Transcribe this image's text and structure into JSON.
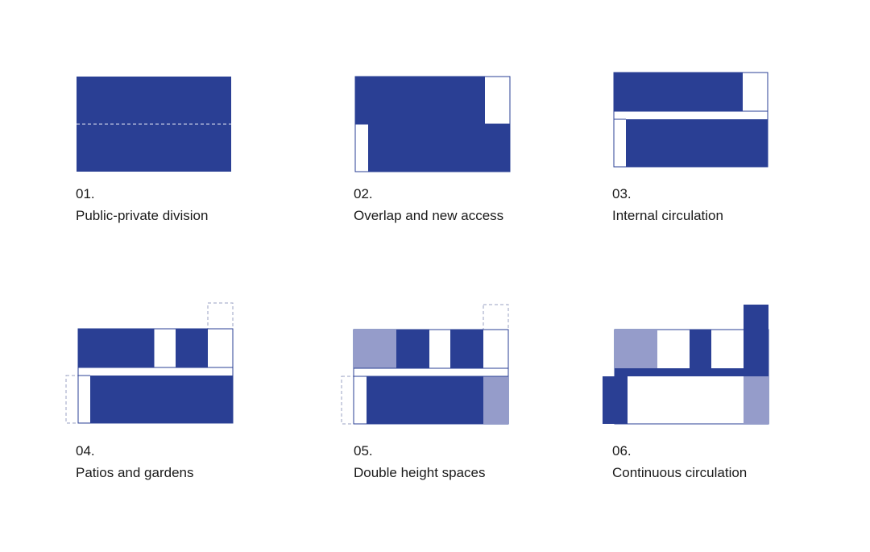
{
  "colors": {
    "primary": "#2a3f94",
    "light": "#959cca",
    "line": "#2a3f94",
    "dashed": "#9aa0c3",
    "background": "#ffffff"
  },
  "diagrams": [
    {
      "number": "01.",
      "label": "Public-private division"
    },
    {
      "number": "02.",
      "label": "Overlap and new access"
    },
    {
      "number": "03.",
      "label": "Internal circulation"
    },
    {
      "number": "04.",
      "label": "Patios and gardens"
    },
    {
      "number": "05.",
      "label": "Double height spaces"
    },
    {
      "number": "06.",
      "label": "Continuous circulation"
    }
  ]
}
